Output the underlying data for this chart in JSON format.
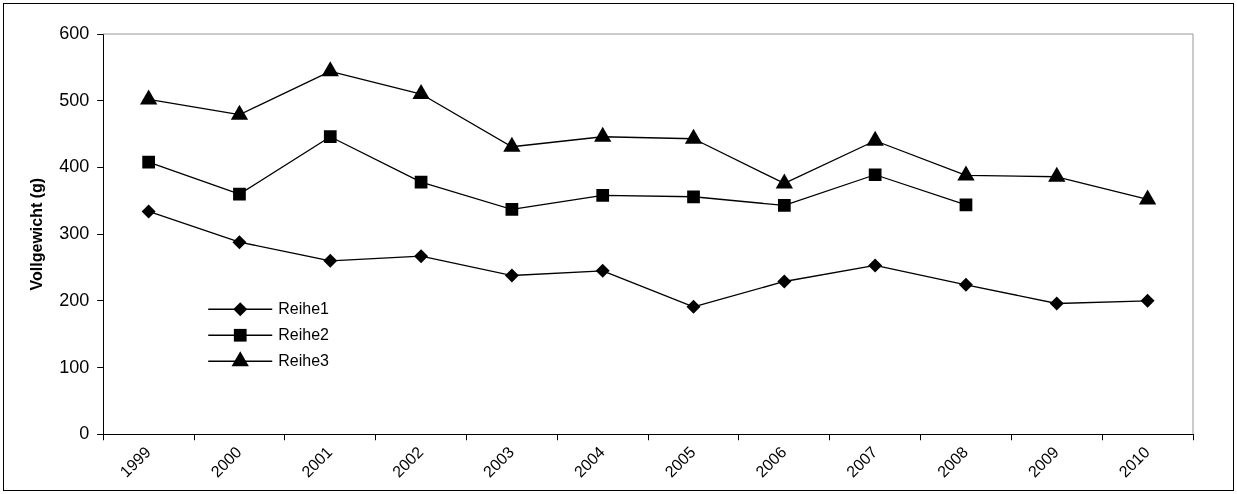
{
  "chart_data": {
    "type": "line",
    "ylabel": "Vollgewicht (g)",
    "categories": [
      "1999",
      "2000",
      "2001",
      "2002",
      "2003",
      "2004",
      "2005",
      "2006",
      "2007",
      "2008",
      "2009",
      "2010"
    ],
    "ylim": [
      0,
      600
    ],
    "yticks": [
      0,
      100,
      200,
      300,
      400,
      500,
      600
    ],
    "grid": false,
    "legend": "bottom left",
    "series": [
      {
        "name": "Reihe1",
        "color": "#000000",
        "marker": "diamond",
        "values": [
          334,
          288,
          260,
          267,
          238,
          245,
          191,
          229,
          253,
          224,
          196,
          200
        ]
      },
      {
        "name": "Reihe2",
        "color": "#000000",
        "marker": "square",
        "values": [
          408,
          360,
          446,
          378,
          337,
          358,
          356,
          343,
          389,
          344,
          null,
          null
        ]
      },
      {
        "name": "Reihe3",
        "color": "#000000",
        "marker": "triangle",
        "values": [
          502,
          479,
          544,
          510,
          431,
          446,
          443,
          376,
          440,
          388,
          386,
          352
        ]
      }
    ]
  }
}
